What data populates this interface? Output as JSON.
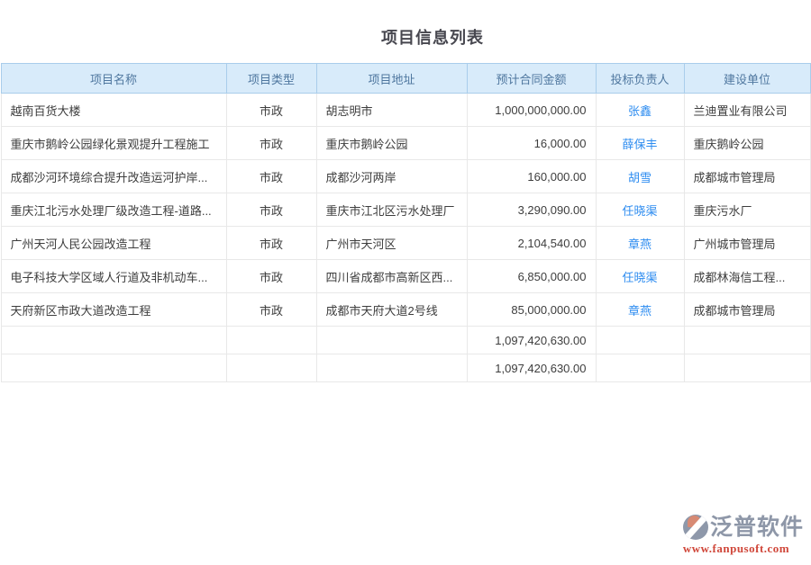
{
  "page": {
    "title": "项目信息列表"
  },
  "table": {
    "columns": [
      {
        "label": "项目名称"
      },
      {
        "label": "项目类型"
      },
      {
        "label": "项目地址"
      },
      {
        "label": "预计合同金额"
      },
      {
        "label": "投标负责人"
      },
      {
        "label": "建设单位"
      }
    ],
    "rows": [
      {
        "name": "越南百货大楼",
        "type": "市政",
        "address": "胡志明市",
        "amount": "1,000,000,000.00",
        "leader": "张鑫",
        "unit": "兰迪置业有限公司"
      },
      {
        "name": "重庆市鹅岭公园绿化景观提升工程施工",
        "type": "市政",
        "address": "重庆市鹅岭公园",
        "amount": "16,000.00",
        "leader": "薛保丰",
        "unit": "重庆鹅岭公园"
      },
      {
        "name": "成都沙河环境综合提升改造运河护岸...",
        "type": "市政",
        "address": "成都沙河两岸",
        "amount": "160,000.00",
        "leader": "胡雪",
        "unit": "成都城市管理局"
      },
      {
        "name": "重庆江北污水处理厂级改造工程-道路...",
        "type": "市政",
        "address": "重庆市江北区污水处理厂",
        "amount": "3,290,090.00",
        "leader": "任晓渠",
        "unit": "重庆污水厂"
      },
      {
        "name": "广州天河人民公园改造工程",
        "type": "市政",
        "address": "广州市天河区",
        "amount": "2,104,540.00",
        "leader": "章燕",
        "unit": "广州城市管理局"
      },
      {
        "name": "电子科技大学区域人行道及非机动车...",
        "type": "市政",
        "address": "四川省成都市高新区西...",
        "amount": "6,850,000.00",
        "leader": "任晓渠",
        "unit": "成都林海信工程..."
      },
      {
        "name": "天府新区市政大道改造工程",
        "type": "市政",
        "address": "成都市天府大道2号线",
        "amount": "85,000,000.00",
        "leader": "章燕",
        "unit": "成都城市管理局"
      }
    ],
    "summary_rows": [
      {
        "amount": "1,097,420,630.00"
      },
      {
        "amount": "1,097,420,630.00"
      }
    ]
  },
  "footer": {
    "brand": "泛普软件",
    "url": "www.fanpusoft.com"
  },
  "colors": {
    "header_bg": "#d8ebfa",
    "header_border": "#a9cdeb",
    "header_text": "#4f779f",
    "body_border": "#e8e8e8",
    "link_blue": "#2d8cf0",
    "brand_gray": "#8e97a8",
    "brand_red": "#d0473a"
  }
}
